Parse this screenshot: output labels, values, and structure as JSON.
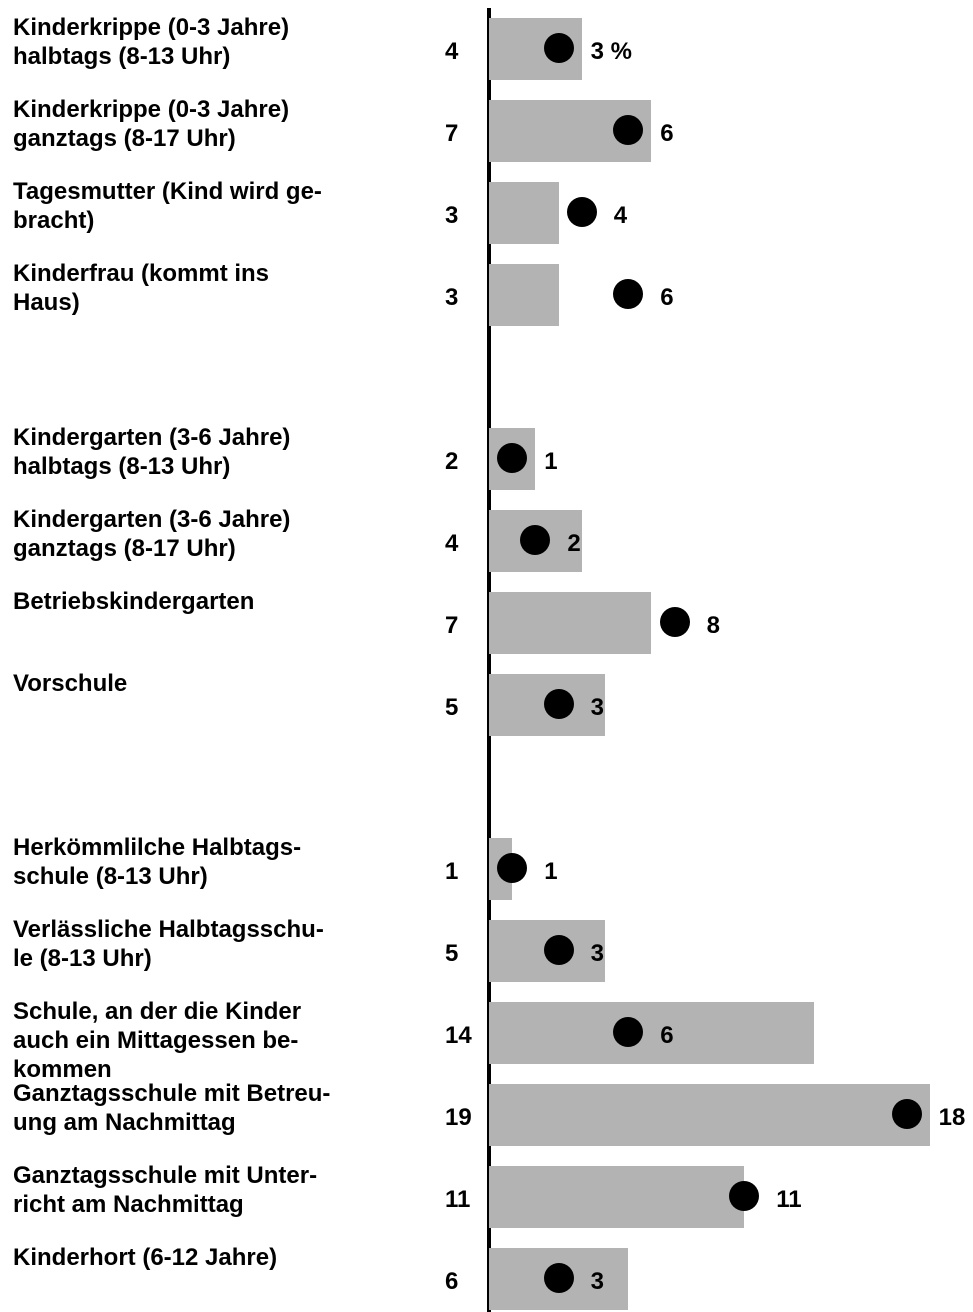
{
  "chart_data": {
    "type": "bar",
    "categories": [
      "Kinderkrippe (0-3 Jahre)\nhalbtags (8-13 Uhr)",
      "Kinderkrippe (0-3 Jahre)\nganztags (8-17 Uhr)",
      "Tagesmutter (Kind wird ge-\nbracht)",
      "Kinderfrau (kommt ins\nHaus)",
      null,
      "Kindergarten (3-6 Jahre)\nhalbtags (8-13 Uhr)",
      "Kindergarten (3-6 Jahre)\nganztags (8-17 Uhr)",
      "Betriebskindergarten",
      "Vorschule",
      null,
      "Herkömmlilche Halbtags-\nschule (8-13 Uhr)",
      "Verlässliche Halbtagsschu-\nle (8-13 Uhr)",
      "Schule, an der die Kinder\nauch ein Mittagessen be-\nkommen",
      "Ganztagsschule mit Betreu-\nung am Nachmittag",
      "Ganztagsschule mit Unter-\nricht am Nachmittag",
      "Kinderhort (6-12 Jahre)"
    ],
    "series": [
      {
        "type": "bar",
        "color": "#b3b3b3",
        "values": [
          4,
          7,
          3,
          3,
          null,
          2,
          4,
          7,
          5,
          null,
          1,
          5,
          14,
          19,
          11,
          6
        ]
      },
      {
        "type": "dot",
        "color": "#000000",
        "values": [
          3,
          6,
          4,
          6,
          null,
          1,
          2,
          8,
          3,
          null,
          1,
          3,
          6,
          18,
          11,
          3
        ],
        "value_labels": [
          "3 %",
          "6",
          "4",
          "6",
          null,
          "1",
          "2",
          "8",
          "3",
          null,
          "1",
          "3",
          "6",
          "18",
          "11",
          "3"
        ]
      }
    ]
  }
}
